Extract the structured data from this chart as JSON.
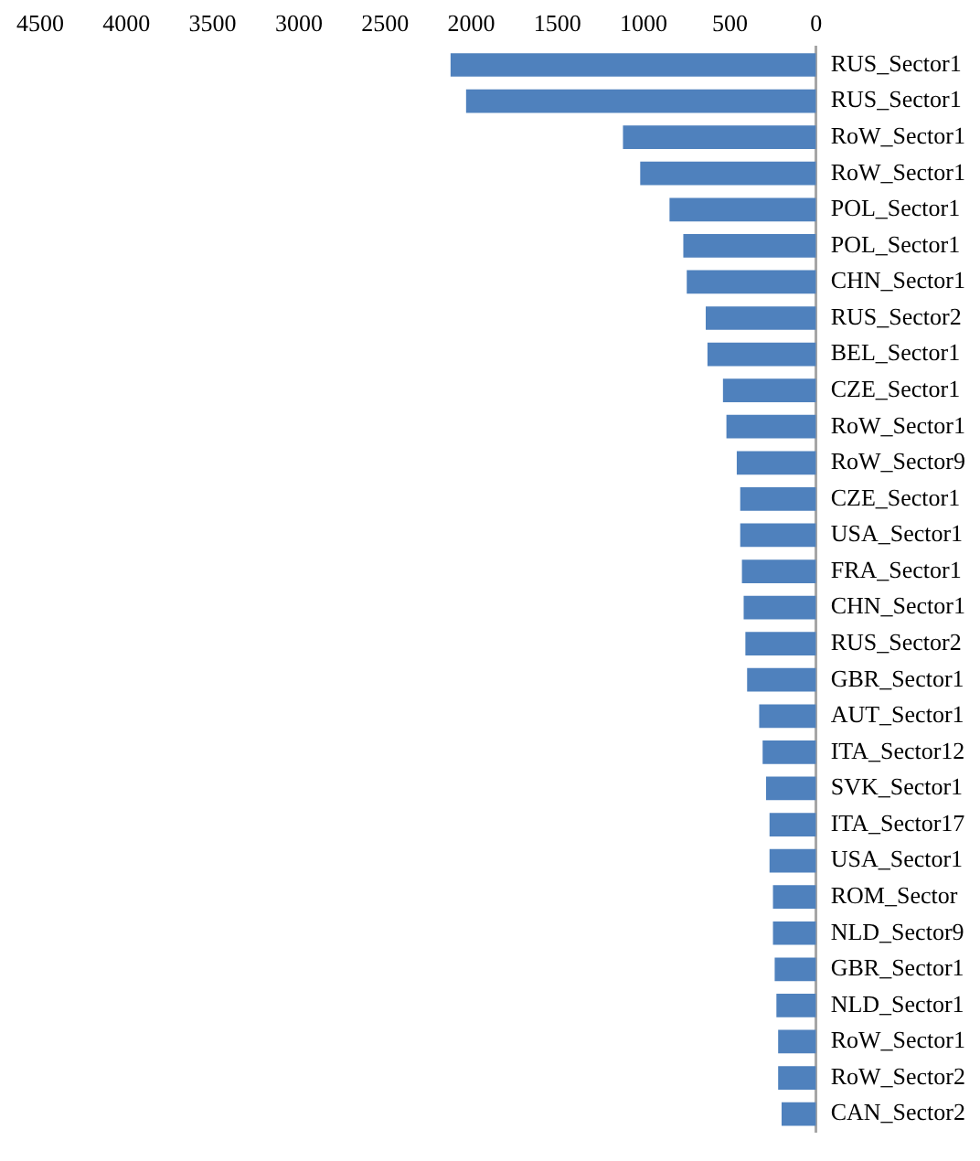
{
  "chart_data": {
    "type": "bar",
    "orientation": "horizontal",
    "categories": [
      "RUS_Sector1",
      "RUS_Sector1",
      "RoW_Sector1",
      "RoW_Sector1",
      "POL_Sector1",
      "POL_Sector1",
      "CHN_Sector1",
      "RUS_Sector2",
      "BEL_Sector1",
      "CZE_Sector1",
      "RoW_Sector1",
      "RoW_Sector9",
      "CZE_Sector1",
      "USA_Sector1",
      "FRA_Sector1",
      "CHN_Sector1",
      "RUS_Sector2",
      "GBR_Sector1",
      "AUT_Sector1",
      "ITA_Sector12",
      "SVK_Sector1",
      "ITA_Sector17",
      "USA_Sector1",
      "ROM_Sector",
      "NLD_Sector9",
      "GBR_Sector1",
      "NLD_Sector1",
      "RoW_Sector1",
      "RoW_Sector2",
      "CAN_Sector2"
    ],
    "values": [
      2120,
      2030,
      1120,
      1020,
      850,
      770,
      750,
      640,
      630,
      540,
      520,
      460,
      440,
      440,
      430,
      420,
      410,
      400,
      330,
      310,
      290,
      270,
      270,
      250,
      250,
      240,
      230,
      220,
      220,
      200
    ],
    "color": "#4f81bd",
    "xlim": [
      4500,
      0
    ],
    "xticks": [
      0,
      500,
      1000,
      1500,
      2000,
      2500,
      3000,
      3500,
      4000,
      4500
    ],
    "grid": false,
    "legend": false
  }
}
